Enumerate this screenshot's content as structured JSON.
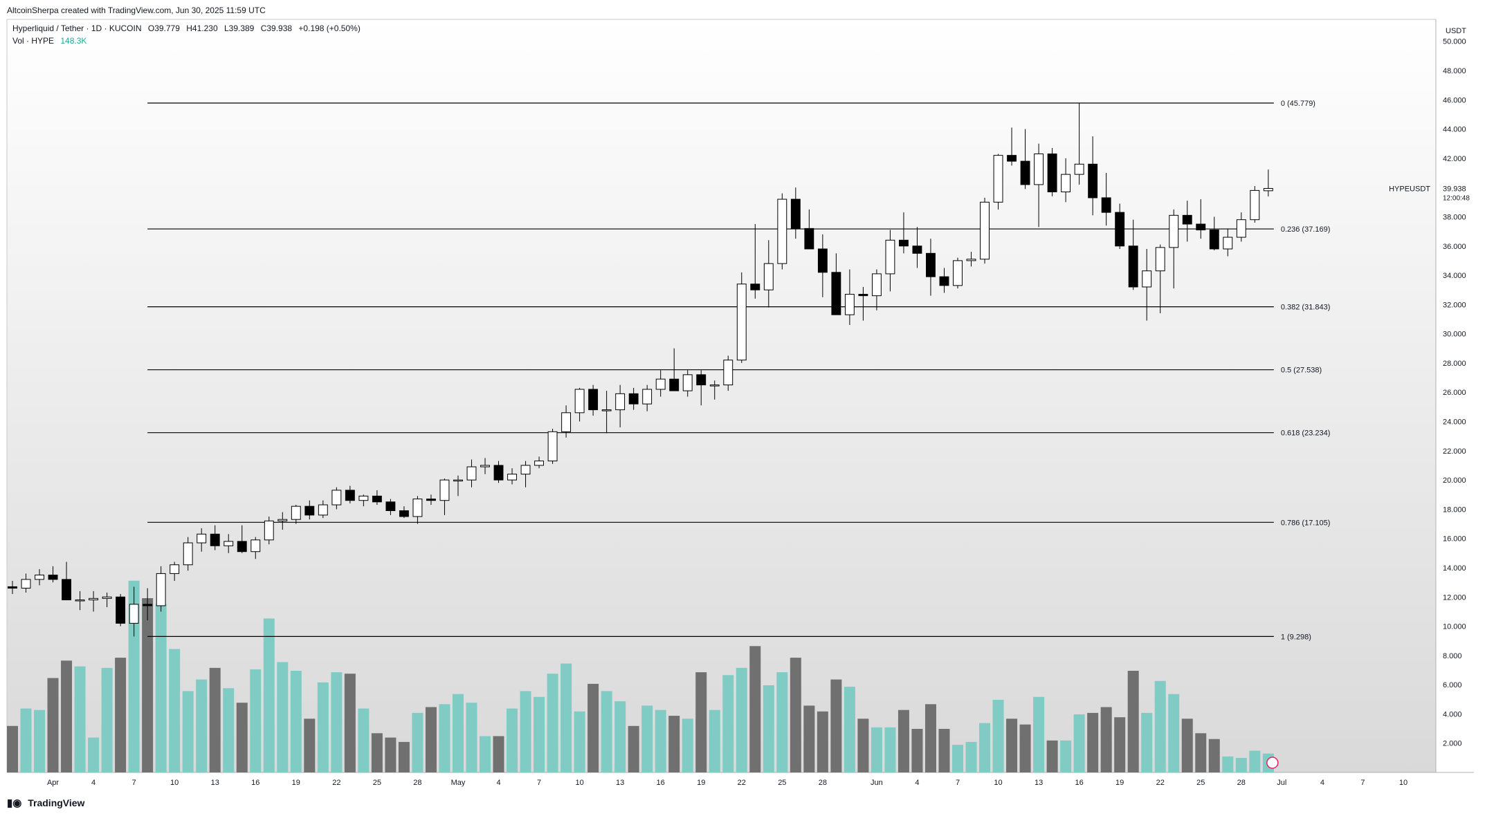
{
  "header": {
    "credit": "AltcoinSherpa created with TradingView.com, Jun 30, 2025 11:59 UTC",
    "symbol_line": "Hyperliquid / Tether · 1D · KUCOIN",
    "o": "O39.779",
    "h": "H41.230",
    "l": "L39.389",
    "c": "C39.938",
    "change": "+0.198 (+0.50%)",
    "vol_label": "Vol · HYPE",
    "vol_value": "148.3K"
  },
  "footer": {
    "logo_text": "TradingView",
    "logo_icon": "tradingview-logo-icon"
  },
  "colors": {
    "up_body": "#ffffff",
    "down_body": "#000000",
    "wick": "#000000",
    "vol_up": "#80cbc4",
    "vol_down": "#707070",
    "fib_line": "#000000",
    "bg_top": "#ffffff",
    "bg_bottom": "#d9d9d9"
  },
  "chart_data": {
    "type": "candlestick",
    "price_axis_unit": "USDT",
    "y_ticks": [
      "50.000",
      "48.000",
      "46.000",
      "44.000",
      "42.000",
      "40.000",
      "38.000",
      "36.000",
      "34.000",
      "32.000",
      "30.000",
      "28.000",
      "26.000",
      "24.000",
      "22.000",
      "20.000",
      "18.000",
      "16.000",
      "14.000",
      "12.000",
      "10.000",
      "8.000",
      "6.000",
      "4.000",
      "2.000"
    ],
    "ylim": [
      0,
      51.5
    ],
    "x_ticks": [
      {
        "label": "Apr",
        "date": "2025-04-01"
      },
      {
        "label": "4",
        "date": "2025-04-04"
      },
      {
        "label": "7",
        "date": "2025-04-07"
      },
      {
        "label": "10",
        "date": "2025-04-10"
      },
      {
        "label": "13",
        "date": "2025-04-13"
      },
      {
        "label": "16",
        "date": "2025-04-16"
      },
      {
        "label": "19",
        "date": "2025-04-19"
      },
      {
        "label": "22",
        "date": "2025-04-22"
      },
      {
        "label": "25",
        "date": "2025-04-25"
      },
      {
        "label": "28",
        "date": "2025-04-28"
      },
      {
        "label": "May",
        "date": "2025-05-01"
      },
      {
        "label": "4",
        "date": "2025-05-04"
      },
      {
        "label": "7",
        "date": "2025-05-07"
      },
      {
        "label": "10",
        "date": "2025-05-10"
      },
      {
        "label": "13",
        "date": "2025-05-13"
      },
      {
        "label": "16",
        "date": "2025-05-16"
      },
      {
        "label": "19",
        "date": "2025-05-19"
      },
      {
        "label": "22",
        "date": "2025-05-22"
      },
      {
        "label": "25",
        "date": "2025-05-25"
      },
      {
        "label": "28",
        "date": "2025-05-28"
      },
      {
        "label": "Jun",
        "date": "2025-06-01"
      },
      {
        "label": "4",
        "date": "2025-06-04"
      },
      {
        "label": "7",
        "date": "2025-06-07"
      },
      {
        "label": "10",
        "date": "2025-06-10"
      },
      {
        "label": "13",
        "date": "2025-06-13"
      },
      {
        "label": "16",
        "date": "2025-06-16"
      },
      {
        "label": "19",
        "date": "2025-06-19"
      },
      {
        "label": "22",
        "date": "2025-06-22"
      },
      {
        "label": "25",
        "date": "2025-06-25"
      },
      {
        "label": "28",
        "date": "2025-06-28"
      },
      {
        "label": "Jul",
        "date": "2025-07-01"
      },
      {
        "label": "4",
        "date": "2025-07-04"
      },
      {
        "label": "7",
        "date": "2025-07-07"
      },
      {
        "label": "10",
        "date": "2025-07-10"
      }
    ],
    "x_range": [
      "2025-03-29",
      "2025-07-12"
    ],
    "fib_levels": [
      {
        "ratio": "0",
        "value": 45.779,
        "label": "0 (45.779)",
        "start_date": "2025-04-08"
      },
      {
        "ratio": "0.236",
        "value": 37.169,
        "label": "0.236 (37.169)",
        "start_date": "2025-04-08"
      },
      {
        "ratio": "0.382",
        "value": 31.843,
        "label": "0.382 (31.843)",
        "start_date": "2025-04-08"
      },
      {
        "ratio": "0.5",
        "value": 27.538,
        "label": "0.5 (27.538)",
        "start_date": "2025-04-08"
      },
      {
        "ratio": "0.618",
        "value": 23.234,
        "label": "0.618 (23.234)",
        "start_date": "2025-04-08"
      },
      {
        "ratio": "0.786",
        "value": 17.105,
        "label": "0.786 (17.105)",
        "start_date": "2025-04-08"
      },
      {
        "ratio": "1",
        "value": 9.298,
        "label": "1 (9.298)",
        "start_date": "2025-04-08"
      }
    ],
    "fib_end_date": "2025-06-30",
    "last_price": {
      "symbol": "HYPEUSDT",
      "value": 39.938,
      "value_label": "39.938",
      "countdown": "12:00:48"
    },
    "candles": [
      {
        "d": "2025-03-29",
        "o": 12.7,
        "h": 13.1,
        "l": 12.2,
        "c": 12.6,
        "v": 3.2
      },
      {
        "d": "2025-03-30",
        "o": 12.6,
        "h": 13.6,
        "l": 12.3,
        "c": 13.2,
        "v": 4.4
      },
      {
        "d": "2025-03-31",
        "o": 13.2,
        "h": 13.9,
        "l": 12.8,
        "c": 13.5,
        "v": 4.3
      },
      {
        "d": "2025-04-01",
        "o": 13.5,
        "h": 14.1,
        "l": 13.0,
        "c": 13.2,
        "v": 6.5
      },
      {
        "d": "2025-04-02",
        "o": 13.2,
        "h": 14.4,
        "l": 11.8,
        "c": 11.8,
        "v": 7.7
      },
      {
        "d": "2025-04-03",
        "o": 11.8,
        "h": 12.4,
        "l": 11.1,
        "c": 11.8,
        "v": 7.3
      },
      {
        "d": "2025-04-04",
        "o": 11.8,
        "h": 12.4,
        "l": 11.0,
        "c": 11.9,
        "v": 2.4
      },
      {
        "d": "2025-04-05",
        "o": 11.9,
        "h": 12.3,
        "l": 11.3,
        "c": 12.0,
        "v": 7.2
      },
      {
        "d": "2025-04-06",
        "o": 12.0,
        "h": 12.2,
        "l": 10.0,
        "c": 10.2,
        "v": 7.9
      },
      {
        "d": "2025-04-07",
        "o": 10.2,
        "h": 12.7,
        "l": 9.3,
        "c": 11.5,
        "v": 13.2
      },
      {
        "d": "2025-04-08",
        "o": 11.5,
        "h": 12.6,
        "l": 10.4,
        "c": 11.4,
        "v": 12.0
      },
      {
        "d": "2025-04-09",
        "o": 11.4,
        "h": 14.1,
        "l": 11.0,
        "c": 13.6,
        "v": 11.6
      },
      {
        "d": "2025-04-10",
        "o": 13.6,
        "h": 14.4,
        "l": 13.1,
        "c": 14.2,
        "v": 8.5
      },
      {
        "d": "2025-04-11",
        "o": 14.2,
        "h": 16.1,
        "l": 13.8,
        "c": 15.7,
        "v": 5.6
      },
      {
        "d": "2025-04-12",
        "o": 15.7,
        "h": 16.7,
        "l": 15.1,
        "c": 16.3,
        "v": 6.4
      },
      {
        "d": "2025-04-13",
        "o": 16.3,
        "h": 16.9,
        "l": 15.2,
        "c": 15.5,
        "v": 7.2
      },
      {
        "d": "2025-04-14",
        "o": 15.5,
        "h": 16.3,
        "l": 15.0,
        "c": 15.8,
        "v": 5.8
      },
      {
        "d": "2025-04-15",
        "o": 15.8,
        "h": 16.9,
        "l": 15.0,
        "c": 15.1,
        "v": 4.8
      },
      {
        "d": "2025-04-16",
        "o": 15.1,
        "h": 16.1,
        "l": 14.6,
        "c": 15.9,
        "v": 7.1
      },
      {
        "d": "2025-04-17",
        "o": 15.9,
        "h": 17.5,
        "l": 15.6,
        "c": 17.2,
        "v": 10.6
      },
      {
        "d": "2025-04-18",
        "o": 17.2,
        "h": 17.8,
        "l": 16.6,
        "c": 17.3,
        "v": 7.6
      },
      {
        "d": "2025-04-19",
        "o": 17.3,
        "h": 18.3,
        "l": 17.0,
        "c": 18.2,
        "v": 7.0
      },
      {
        "d": "2025-04-20",
        "o": 18.2,
        "h": 18.6,
        "l": 17.3,
        "c": 17.6,
        "v": 3.7
      },
      {
        "d": "2025-04-21",
        "o": 17.6,
        "h": 18.6,
        "l": 17.4,
        "c": 18.3,
        "v": 6.2
      },
      {
        "d": "2025-04-22",
        "o": 18.3,
        "h": 19.5,
        "l": 18.0,
        "c": 19.3,
        "v": 6.9
      },
      {
        "d": "2025-04-23",
        "o": 19.3,
        "h": 19.6,
        "l": 18.4,
        "c": 18.6,
        "v": 6.8
      },
      {
        "d": "2025-04-24",
        "o": 18.6,
        "h": 19.0,
        "l": 18.2,
        "c": 18.9,
        "v": 4.4
      },
      {
        "d": "2025-04-25",
        "o": 18.9,
        "h": 19.3,
        "l": 18.3,
        "c": 18.5,
        "v": 2.7
      },
      {
        "d": "2025-04-26",
        "o": 18.5,
        "h": 18.7,
        "l": 17.6,
        "c": 17.9,
        "v": 2.4
      },
      {
        "d": "2025-04-27",
        "o": 17.9,
        "h": 18.2,
        "l": 17.4,
        "c": 17.5,
        "v": 2.1
      },
      {
        "d": "2025-04-28",
        "o": 17.5,
        "h": 18.9,
        "l": 17.0,
        "c": 18.7,
        "v": 4.1
      },
      {
        "d": "2025-04-29",
        "o": 18.7,
        "h": 19.0,
        "l": 18.3,
        "c": 18.6,
        "v": 4.5
      },
      {
        "d": "2025-04-30",
        "o": 18.6,
        "h": 20.1,
        "l": 17.6,
        "c": 20.0,
        "v": 4.7
      },
      {
        "d": "2025-05-01",
        "o": 20.0,
        "h": 20.3,
        "l": 18.9,
        "c": 20.0,
        "v": 5.4
      },
      {
        "d": "2025-05-02",
        "o": 20.0,
        "h": 21.4,
        "l": 19.5,
        "c": 20.9,
        "v": 4.8
      },
      {
        "d": "2025-05-03",
        "o": 20.9,
        "h": 21.5,
        "l": 20.4,
        "c": 21.0,
        "v": 2.5
      },
      {
        "d": "2025-05-04",
        "o": 21.0,
        "h": 21.3,
        "l": 19.8,
        "c": 20.0,
        "v": 2.5
      },
      {
        "d": "2025-05-05",
        "o": 20.0,
        "h": 20.8,
        "l": 19.7,
        "c": 20.4,
        "v": 4.4
      },
      {
        "d": "2025-05-06",
        "o": 20.4,
        "h": 21.3,
        "l": 19.5,
        "c": 21.0,
        "v": 5.6
      },
      {
        "d": "2025-05-07",
        "o": 21.0,
        "h": 21.6,
        "l": 20.8,
        "c": 21.3,
        "v": 5.2
      },
      {
        "d": "2025-05-08",
        "o": 21.3,
        "h": 23.5,
        "l": 21.1,
        "c": 23.3,
        "v": 6.8
      },
      {
        "d": "2025-05-09",
        "o": 23.3,
        "h": 25.1,
        "l": 22.9,
        "c": 24.6,
        "v": 7.5
      },
      {
        "d": "2025-05-10",
        "o": 24.6,
        "h": 26.3,
        "l": 24.0,
        "c": 26.2,
        "v": 4.2
      },
      {
        "d": "2025-05-11",
        "o": 26.2,
        "h": 26.5,
        "l": 24.4,
        "c": 24.8,
        "v": 6.1
      },
      {
        "d": "2025-05-12",
        "o": 24.8,
        "h": 26.1,
        "l": 23.2,
        "c": 24.8,
        "v": 5.6
      },
      {
        "d": "2025-05-13",
        "o": 24.8,
        "h": 26.5,
        "l": 23.6,
        "c": 25.9,
        "v": 4.9
      },
      {
        "d": "2025-05-14",
        "o": 25.9,
        "h": 26.3,
        "l": 24.8,
        "c": 25.2,
        "v": 3.2
      },
      {
        "d": "2025-05-15",
        "o": 25.2,
        "h": 26.5,
        "l": 24.7,
        "c": 26.2,
        "v": 4.6
      },
      {
        "d": "2025-05-16",
        "o": 26.2,
        "h": 27.5,
        "l": 25.7,
        "c": 26.9,
        "v": 4.3
      },
      {
        "d": "2025-05-17",
        "o": 26.9,
        "h": 29.0,
        "l": 26.1,
        "c": 26.1,
        "v": 3.9
      },
      {
        "d": "2025-05-18",
        "o": 26.1,
        "h": 27.5,
        "l": 25.7,
        "c": 27.2,
        "v": 3.7
      },
      {
        "d": "2025-05-19",
        "o": 27.2,
        "h": 27.5,
        "l": 25.1,
        "c": 26.5,
        "v": 6.9
      },
      {
        "d": "2025-05-20",
        "o": 26.5,
        "h": 26.8,
        "l": 25.5,
        "c": 26.5,
        "v": 4.3
      },
      {
        "d": "2025-05-21",
        "o": 26.5,
        "h": 28.5,
        "l": 26.1,
        "c": 28.2,
        "v": 6.7
      },
      {
        "d": "2025-05-22",
        "o": 28.2,
        "h": 34.2,
        "l": 28.0,
        "c": 33.4,
        "v": 7.2
      },
      {
        "d": "2025-05-23",
        "o": 33.4,
        "h": 37.5,
        "l": 32.4,
        "c": 33.0,
        "v": 8.7
      },
      {
        "d": "2025-05-24",
        "o": 33.0,
        "h": 36.4,
        "l": 31.8,
        "c": 34.8,
        "v": 6.0
      },
      {
        "d": "2025-05-25",
        "o": 34.8,
        "h": 39.6,
        "l": 34.4,
        "c": 39.2,
        "v": 6.9
      },
      {
        "d": "2025-05-26",
        "o": 39.2,
        "h": 40.0,
        "l": 36.5,
        "c": 37.2,
        "v": 7.9
      },
      {
        "d": "2025-05-27",
        "o": 37.2,
        "h": 38.5,
        "l": 35.8,
        "c": 35.8,
        "v": 4.6
      },
      {
        "d": "2025-05-28",
        "o": 35.8,
        "h": 36.8,
        "l": 32.5,
        "c": 34.2,
        "v": 4.2
      },
      {
        "d": "2025-05-29",
        "o": 34.2,
        "h": 35.5,
        "l": 31.3,
        "c": 31.3,
        "v": 6.4
      },
      {
        "d": "2025-05-30",
        "o": 31.3,
        "h": 34.4,
        "l": 30.6,
        "c": 32.7,
        "v": 5.9
      },
      {
        "d": "2025-05-31",
        "o": 32.7,
        "h": 33.2,
        "l": 30.9,
        "c": 32.6,
        "v": 3.7
      },
      {
        "d": "2025-06-01",
        "o": 32.6,
        "h": 34.4,
        "l": 31.6,
        "c": 34.1,
        "v": 3.1
      },
      {
        "d": "2025-06-02",
        "o": 34.1,
        "h": 37.1,
        "l": 32.9,
        "c": 36.4,
        "v": 3.1
      },
      {
        "d": "2025-06-03",
        "o": 36.4,
        "h": 38.3,
        "l": 35.5,
        "c": 36.0,
        "v": 4.3
      },
      {
        "d": "2025-06-04",
        "o": 36.0,
        "h": 37.3,
        "l": 34.5,
        "c": 35.5,
        "v": 3.0
      },
      {
        "d": "2025-06-05",
        "o": 35.5,
        "h": 36.5,
        "l": 32.6,
        "c": 33.9,
        "v": 4.7
      },
      {
        "d": "2025-06-06",
        "o": 33.9,
        "h": 34.5,
        "l": 32.8,
        "c": 33.3,
        "v": 3.0
      },
      {
        "d": "2025-06-07",
        "o": 33.3,
        "h": 35.2,
        "l": 33.1,
        "c": 35.0,
        "v": 1.9
      },
      {
        "d": "2025-06-08",
        "o": 35.0,
        "h": 35.6,
        "l": 34.6,
        "c": 35.1,
        "v": 2.1
      },
      {
        "d": "2025-06-09",
        "o": 35.1,
        "h": 39.3,
        "l": 34.8,
        "c": 39.0,
        "v": 3.4
      },
      {
        "d": "2025-06-10",
        "o": 39.0,
        "h": 42.3,
        "l": 38.5,
        "c": 42.2,
        "v": 5.0
      },
      {
        "d": "2025-06-11",
        "o": 42.2,
        "h": 44.1,
        "l": 41.5,
        "c": 41.8,
        "v": 3.7
      },
      {
        "d": "2025-06-12",
        "o": 41.8,
        "h": 44.0,
        "l": 39.9,
        "c": 40.2,
        "v": 3.3
      },
      {
        "d": "2025-06-13",
        "o": 40.2,
        "h": 43.0,
        "l": 37.3,
        "c": 42.3,
        "v": 5.2
      },
      {
        "d": "2025-06-14",
        "o": 42.3,
        "h": 42.7,
        "l": 39.4,
        "c": 39.7,
        "v": 2.2
      },
      {
        "d": "2025-06-15",
        "o": 39.7,
        "h": 42.0,
        "l": 39.0,
        "c": 40.9,
        "v": 2.2
      },
      {
        "d": "2025-06-16",
        "o": 40.9,
        "h": 45.8,
        "l": 40.2,
        "c": 41.6,
        "v": 4.0
      },
      {
        "d": "2025-06-17",
        "o": 41.6,
        "h": 43.5,
        "l": 38.1,
        "c": 39.3,
        "v": 4.1
      },
      {
        "d": "2025-06-18",
        "o": 39.3,
        "h": 41.0,
        "l": 37.4,
        "c": 38.3,
        "v": 4.5
      },
      {
        "d": "2025-06-19",
        "o": 38.3,
        "h": 38.9,
        "l": 35.8,
        "c": 36.0,
        "v": 3.8
      },
      {
        "d": "2025-06-20",
        "o": 36.0,
        "h": 37.8,
        "l": 33.0,
        "c": 33.2,
        "v": 7.0
      },
      {
        "d": "2025-06-21",
        "o": 33.2,
        "h": 35.8,
        "l": 30.9,
        "c": 34.3,
        "v": 4.1
      },
      {
        "d": "2025-06-22",
        "o": 34.3,
        "h": 36.1,
        "l": 31.4,
        "c": 35.9,
        "v": 6.3
      },
      {
        "d": "2025-06-23",
        "o": 35.9,
        "h": 38.5,
        "l": 33.1,
        "c": 38.1,
        "v": 5.4
      },
      {
        "d": "2025-06-24",
        "o": 38.1,
        "h": 39.1,
        "l": 36.3,
        "c": 37.5,
        "v": 3.7
      },
      {
        "d": "2025-06-25",
        "o": 37.5,
        "h": 39.2,
        "l": 36.5,
        "c": 37.1,
        "v": 2.7
      },
      {
        "d": "2025-06-26",
        "o": 37.1,
        "h": 38.0,
        "l": 35.7,
        "c": 35.8,
        "v": 2.3
      },
      {
        "d": "2025-06-27",
        "o": 35.8,
        "h": 37.2,
        "l": 35.3,
        "c": 36.6,
        "v": 1.1
      },
      {
        "d": "2025-06-28",
        "o": 36.6,
        "h": 38.3,
        "l": 36.3,
        "c": 37.8,
        "v": 1.0
      },
      {
        "d": "2025-06-29",
        "o": 37.8,
        "h": 40.1,
        "l": 37.6,
        "c": 39.8,
        "v": 1.5
      },
      {
        "d": "2025-06-30",
        "o": 39.779,
        "h": 41.23,
        "l": 39.389,
        "c": 39.938,
        "v": 1.3
      }
    ]
  }
}
